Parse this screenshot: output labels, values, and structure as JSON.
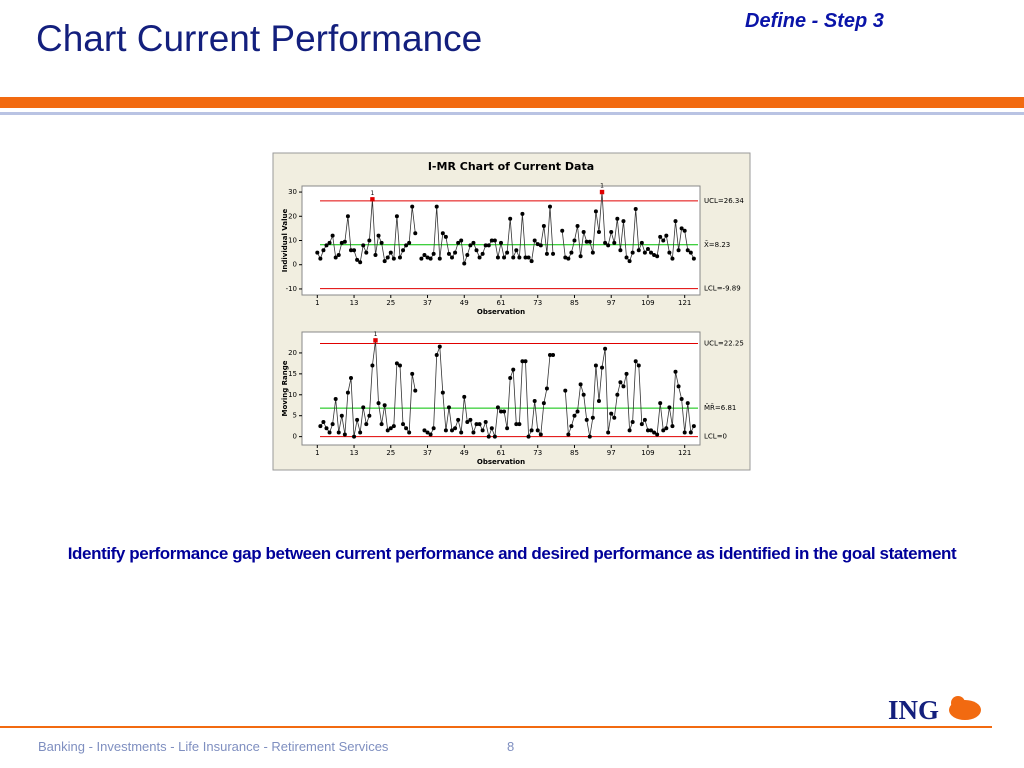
{
  "header": {
    "title": "Chart Current Performance",
    "step": "Define - Step 3"
  },
  "caption": "Identify performance gap between current performance and desired performance as identified in the goal statement",
  "footer": {
    "text": "Banking - Investments - Life Insurance - Retirement Services",
    "page": "8",
    "logo": "ING"
  },
  "chart_title": "I-MR Chart of Current Data",
  "chart_data": [
    {
      "type": "line",
      "xlabel": "Observation",
      "ylabel": "Individual Value",
      "xlim": [
        -4,
        126
      ],
      "xticks": [
        1,
        13,
        25,
        37,
        49,
        61,
        73,
        85,
        97,
        109,
        121
      ],
      "ylim": [
        -12.5,
        32.5
      ],
      "yticks": [
        -10,
        0,
        10,
        20,
        30
      ],
      "color": "#000000",
      "line_color": "#333333",
      "out_color": "#e00000",
      "values": [
        5,
        2.5,
        6,
        8,
        9,
        12,
        3,
        4,
        9,
        9.5,
        20,
        6,
        6,
        2,
        1,
        8,
        5,
        10,
        27,
        4,
        12,
        9,
        1.5,
        3,
        5,
        2.5,
        20,
        3,
        6,
        8,
        9,
        24,
        13,
        null,
        2.5,
        4,
        3,
        2.5,
        4.5,
        24,
        2.5,
        13,
        11.5,
        4.5,
        3,
        5,
        9,
        10,
        0.5,
        4,
        8,
        9,
        6,
        3,
        4.5,
        8,
        8,
        10,
        10,
        3,
        9,
        3,
        5,
        19,
        3,
        6,
        3,
        21,
        3,
        3,
        1.5,
        10,
        8.5,
        8,
        16,
        4.5,
        24,
        4.5,
        null,
        null,
        14,
        3,
        2.5,
        5,
        10,
        16,
        3.5,
        13.5,
        9.5,
        9.5,
        5,
        22,
        13.5,
        30,
        9,
        8,
        13.5,
        9,
        19,
        6,
        18,
        3,
        1.5,
        5,
        23,
        6,
        9,
        5,
        6.5,
        5,
        4,
        3.5,
        11.5,
        10,
        12,
        5,
        2.5,
        18,
        6,
        15,
        14,
        6,
        5,
        2.5
      ],
      "limits": [
        {
          "value": 26.34,
          "label": "UCL=26.34",
          "color": "#e00000"
        },
        {
          "value": 8.23,
          "label": "X̄=8.23",
          "color": "#00c000"
        },
        {
          "value": -9.89,
          "label": "LCL=-9.89",
          "color": "#e00000"
        }
      ],
      "annotations": [
        {
          "x": 19,
          "label": "1"
        },
        {
          "x": 94,
          "label": "1"
        }
      ]
    },
    {
      "type": "line",
      "xlabel": "Observation",
      "ylabel": "Moving Range",
      "xlim": [
        -4,
        126
      ],
      "xticks": [
        1,
        13,
        25,
        37,
        49,
        61,
        73,
        85,
        97,
        109,
        121
      ],
      "ylim": [
        -2,
        25
      ],
      "yticks": [
        0,
        5,
        10,
        15,
        20
      ],
      "color": "#000000",
      "line_color": "#333333",
      "out_color": "#e00000",
      "values": [
        null,
        2.5,
        3.5,
        2,
        1,
        3,
        9,
        1,
        5,
        0.5,
        10.5,
        14,
        0,
        4,
        1,
        7,
        3,
        5,
        17,
        23,
        8,
        3,
        7.5,
        1.5,
        2,
        2.5,
        17.5,
        17,
        3,
        2,
        1,
        15,
        11,
        null,
        null,
        1.5,
        1,
        0.5,
        2,
        19.5,
        21.5,
        10.5,
        1.5,
        7,
        1.5,
        2,
        4,
        1,
        9.5,
        3.5,
        4,
        1,
        3,
        3,
        1.5,
        3.5,
        0,
        2,
        0,
        7,
        6,
        6,
        2,
        14,
        16,
        3,
        3,
        18,
        18,
        0,
        1.5,
        8.5,
        1.5,
        0.5,
        8,
        11.5,
        19.5,
        19.5,
        null,
        null,
        null,
        11,
        0.5,
        2.5,
        5,
        6,
        12.5,
        10,
        4,
        0,
        4.5,
        17,
        8.5,
        16.5,
        21,
        1,
        5.5,
        4.5,
        10,
        13,
        12,
        15,
        1.5,
        3.5,
        18,
        17,
        3,
        4,
        1.5,
        1.5,
        1,
        0.5,
        8,
        1.5,
        2,
        7,
        2.5,
        15.5,
        12,
        9,
        1,
        8,
        1,
        2.5
      ],
      "limits": [
        {
          "value": 22.25,
          "label": "UCL=22.25",
          "color": "#e00000"
        },
        {
          "value": 6.81,
          "label": "M̄R̄=6.81",
          "color": "#00c000"
        },
        {
          "value": 0,
          "label": "LCL=0",
          "color": "#e00000"
        }
      ],
      "annotations": [
        {
          "x": 20,
          "label": "1"
        }
      ]
    }
  ]
}
